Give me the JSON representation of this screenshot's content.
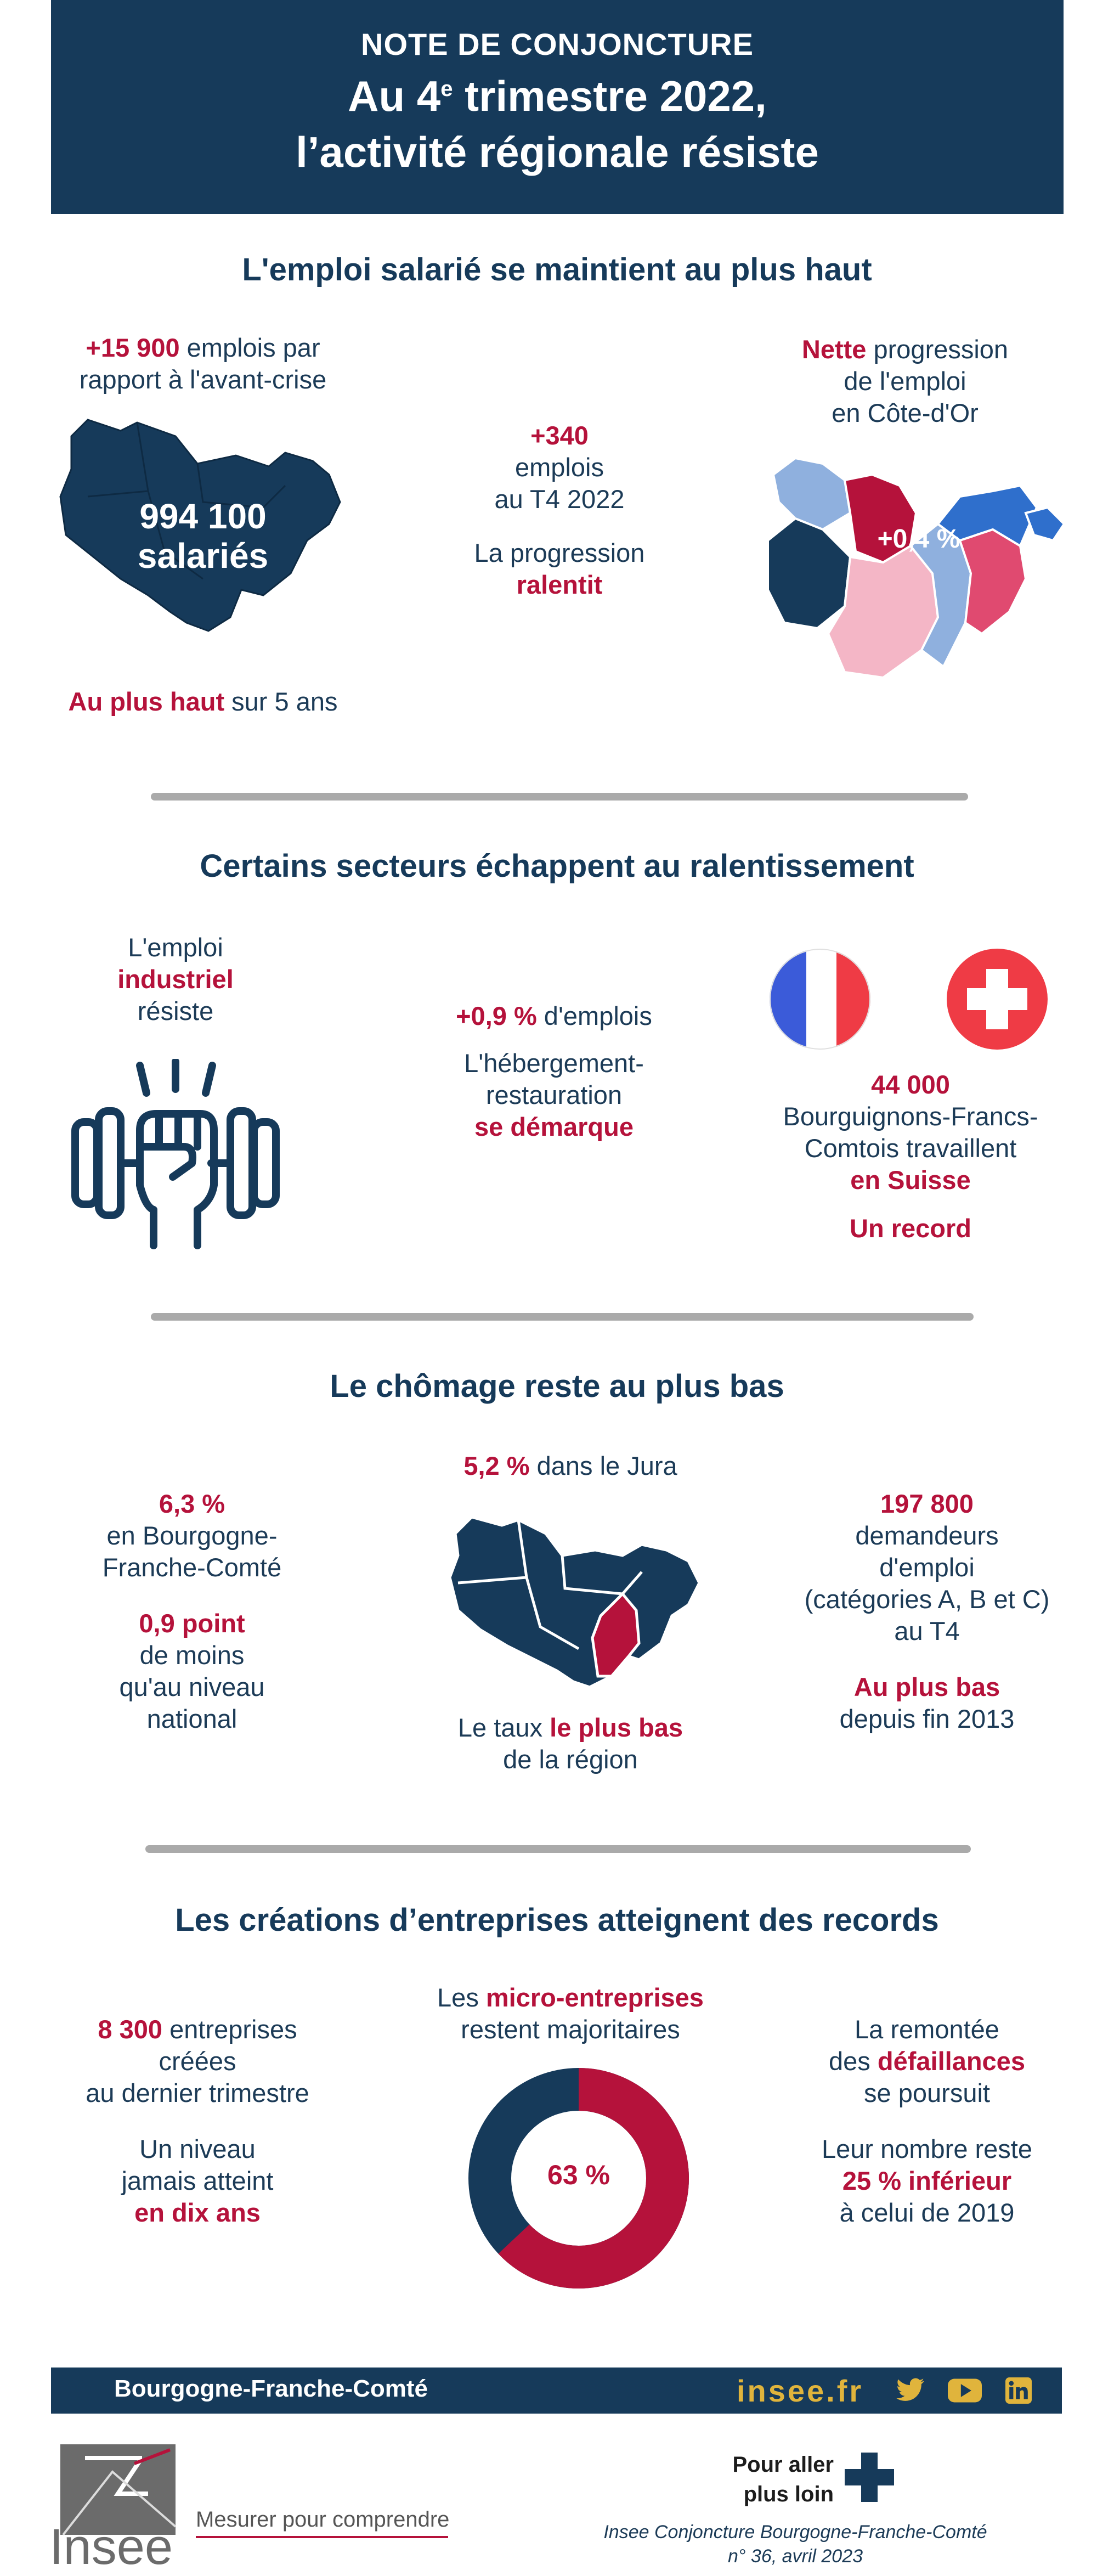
{
  "header": {
    "line1": "NOTE DE CONJONCTURE",
    "line2_pre": "Au 4",
    "line2_sup": "e",
    "line2_post": " trimestre 2022,",
    "line3": "l’activité régionale résiste"
  },
  "section1": {
    "title": "L'emploi salarié se maintient au plus haut",
    "left_top_red": "+15 900",
    "left_top_rest": " emplois par",
    "left_top_line2": "rapport à l'avant-crise",
    "map_label_line1": "994 100",
    "map_label_line2": "salariés",
    "left_bottom_red": "Au plus haut",
    "left_bottom_rest": " sur 5 ans",
    "mid_red": "+340",
    "mid_line2": "emplois",
    "mid_line3": "au T4 2022",
    "mid_line4": "La progression",
    "mid_red2": "ralentit",
    "right_red": "Nette",
    "right_rest": " progression",
    "right_line2": "de l'emploi",
    "right_line3": "en Côte-d'Or",
    "right_map_label": "+0,4 %"
  },
  "section2": {
    "title": "Certains secteurs échappent au ralentissement",
    "left_line1": "L'emploi",
    "left_red": "industriel",
    "left_line3": "résiste",
    "mid_red": "+0,9 %",
    "mid_rest": " d'emplois",
    "mid_line2": "L'hébergement-",
    "mid_line3": "restauration",
    "mid_red2": "se démarque",
    "right_red": "44 000",
    "right_line2": "Bourguignons-Francs-",
    "right_line3": "Comtois travaillent",
    "right_red2": "en Suisse",
    "right_red3": "Un record"
  },
  "section3": {
    "title": "Le chômage reste au plus bas",
    "left_red": "6,3 %",
    "left_line2": "en Bourgogne-",
    "left_line3": "Franche-Comté",
    "left_red2": "0,9 point",
    "left_line5": "de moins",
    "left_line6": "qu'au niveau",
    "left_line7": "national",
    "mid_red": "5,2 %",
    "mid_rest": " dans le Jura",
    "mid_bottom_pre": "Le taux ",
    "mid_bottom_red": "le plus bas",
    "mid_bottom_line2": "de la région",
    "right_red": "197 800",
    "right_line2": "demandeurs",
    "right_line3": "d'emploi",
    "right_line4": "(catégories A, B et C)",
    "right_line5": "au T4",
    "right_red2": "Au plus bas",
    "right_line7": "depuis fin 2013"
  },
  "section4": {
    "title": "Les créations d’entreprises atteignent des records",
    "left_red": "8 300",
    "left_rest": " entreprises",
    "left_line2": "créées",
    "left_line3": "au dernier trimestre",
    "left_line4": "Un niveau",
    "left_line5": "jamais atteint",
    "left_red2": "en dix ans",
    "mid_pre": "Les ",
    "mid_red": "micro-entreprises",
    "mid_line2": "restent majoritaires",
    "donut_label": "63 %",
    "donut_value": 63,
    "right_line1": "La remontée",
    "right_pre": "des ",
    "right_red": "défaillances",
    "right_line3": "se poursuit",
    "right_line4": "Leur nombre reste",
    "right_red2": "25 % inférieur",
    "right_line6": "à celui de 2019"
  },
  "footer": {
    "region": "Bourgogne-Franche-Comté",
    "site": "insee.fr",
    "logo_text": "Insee",
    "tagline": "Mesurer pour comprendre",
    "more_line1": "Pour aller",
    "more_line2": "plus loin",
    "pub_line1": "Insee Conjoncture Bourgogne-Franche-Comté",
    "pub_line2": "n° 36, avril 2023"
  },
  "colors": {
    "navy": "#163a5a",
    "red": "#b5123b",
    "gold": "#e0b43c"
  },
  "icons": [
    "dumbbell-fist-icon",
    "france-flag-icon",
    "swiss-flag-icon",
    "twitter-icon",
    "youtube-icon",
    "linkedin-icon",
    "plus-icon"
  ]
}
